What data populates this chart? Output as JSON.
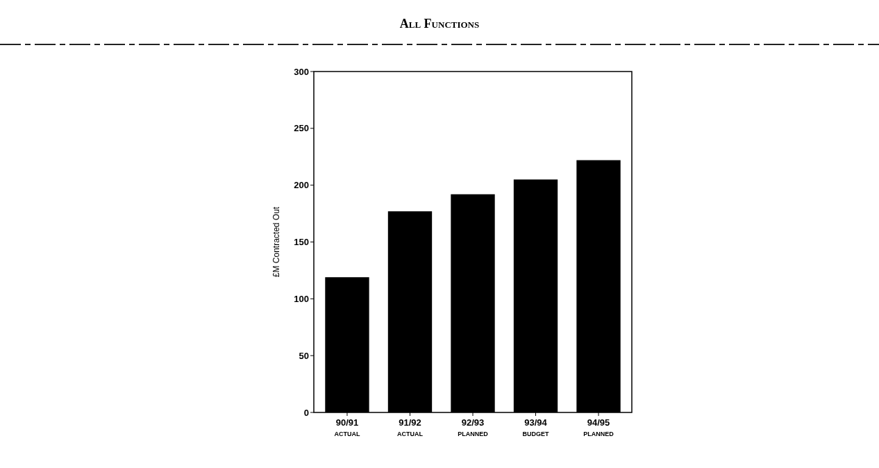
{
  "chart_data": {
    "type": "bar",
    "title": "All Functions",
    "ylabel": "£M Contracted Out",
    "categories": [
      "90/91\nACTUAL",
      "91/92\nACTUAL",
      "92/93\nPLANNED",
      "93/94\nBUDGET",
      "94/95\nPLANNED"
    ],
    "values": [
      119,
      177,
      192,
      205,
      222
    ],
    "color": "#000000",
    "ylim": [
      0,
      300
    ],
    "yticks": [
      0,
      50,
      100,
      150,
      200,
      250,
      300
    ],
    "grid": false
  }
}
